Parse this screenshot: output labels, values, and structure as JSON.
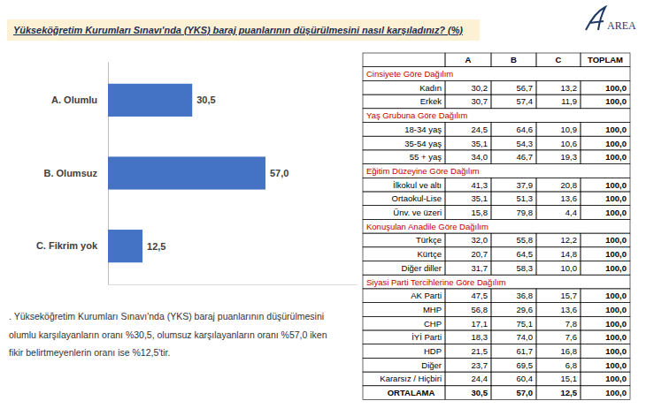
{
  "title": "Yükseköğretim Kurumları Sınavı'nda (YKS) baraj puanlarının düşürülmesini nasıl karşıladınız? (%)",
  "logo": "AREA",
  "chart_data": {
    "type": "bar",
    "orientation": "horizontal",
    "categories": [
      "A. Olumlu",
      "B. Olumsuz",
      "C. Fikrim yok"
    ],
    "values": [
      30.5,
      57.0,
      12.5
    ],
    "value_labels": [
      "30,5",
      "57,0",
      "12,5"
    ],
    "color": "#4472c4",
    "xlim": [
      0,
      90
    ],
    "data_labels": true,
    "tick_labels": "y"
  },
  "table": {
    "columns": [
      "A",
      "B",
      "C",
      "TOPLAM"
    ],
    "groups": [
      {
        "title": "Cinsiyete Göre Dağılım",
        "rows": [
          {
            "label": "Kadın",
            "values": [
              "30,2",
              "56,7",
              "13,2",
              "100,0"
            ]
          },
          {
            "label": "Erkek",
            "values": [
              "30,7",
              "57,4",
              "11,9",
              "100,0"
            ]
          }
        ]
      },
      {
        "title": "Yaş Grubuna Göre Dağılım",
        "rows": [
          {
            "label": "18-34 yaş",
            "values": [
              "24,5",
              "64,6",
              "10,9",
              "100,0"
            ]
          },
          {
            "label": "35-54 yaş",
            "values": [
              "35,1",
              "54,3",
              "10,6",
              "100,0"
            ]
          },
          {
            "label": "55 + yaş",
            "values": [
              "34,0",
              "46,7",
              "19,3",
              "100,0"
            ]
          }
        ]
      },
      {
        "title": "Eğitim Düzeyine Göre Dağılım",
        "rows": [
          {
            "label": "İlkokul ve altı",
            "values": [
              "41,3",
              "37,9",
              "20,8",
              "100,0"
            ]
          },
          {
            "label": "Ortaokul-Lise",
            "values": [
              "35,1",
              "51,3",
              "13,6",
              "100,0"
            ]
          },
          {
            "label": "Ünv. ve üzeri",
            "values": [
              "15,8",
              "79,8",
              "4,4",
              "100,0"
            ]
          }
        ]
      },
      {
        "title": "Konuşulan Anadile Göre Dağılım",
        "rows": [
          {
            "label": "Türkçe",
            "values": [
              "32,0",
              "55,8",
              "12,2",
              "100,0"
            ]
          },
          {
            "label": "Kürtçe",
            "values": [
              "20,7",
              "64,5",
              "14,8",
              "100,0"
            ]
          },
          {
            "label": "Diğer diller",
            "values": [
              "31,7",
              "58,3",
              "10,0",
              "100,0"
            ]
          }
        ]
      },
      {
        "title": "Siyasi Parti Tercihlerine Göre Dağılım",
        "rows": [
          {
            "label": "AK Parti",
            "values": [
              "47,5",
              "36,8",
              "15,7",
              "100,0"
            ]
          },
          {
            "label": "MHP",
            "values": [
              "56,8",
              "29,6",
              "13,6",
              "100,0"
            ]
          },
          {
            "label": "CHP",
            "values": [
              "17,1",
              "75,1",
              "7,8",
              "100,0"
            ]
          },
          {
            "label": "İYİ Parti",
            "values": [
              "18,3",
              "74,0",
              "7,6",
              "100,0"
            ]
          },
          {
            "label": "HDP",
            "values": [
              "21,5",
              "61,7",
              "16,8",
              "100,0"
            ]
          },
          {
            "label": "Diğer",
            "values": [
              "23,7",
              "69,5",
              "6,8",
              "100,0"
            ]
          },
          {
            "label": "Kararsız / Hiçbiri",
            "values": [
              "24,4",
              "60,4",
              "15,1",
              "100,0"
            ]
          }
        ]
      }
    ],
    "total": {
      "label": "ORTALAMA",
      "values": [
        "30,5",
        "57,0",
        "12,5",
        "100,0"
      ]
    }
  },
  "note": {
    "lines": [
      ". Yükseköğretim Kurumları Sınavı'nda (YKS) baraj puanlarının düşürülmesini",
      "olumlu karşılayanların oranı %30,5, olumsuz karşılayanların oranı %57,0 iken",
      "fikir belirtmeyenlerin oranı ise %12,5'tir."
    ]
  }
}
